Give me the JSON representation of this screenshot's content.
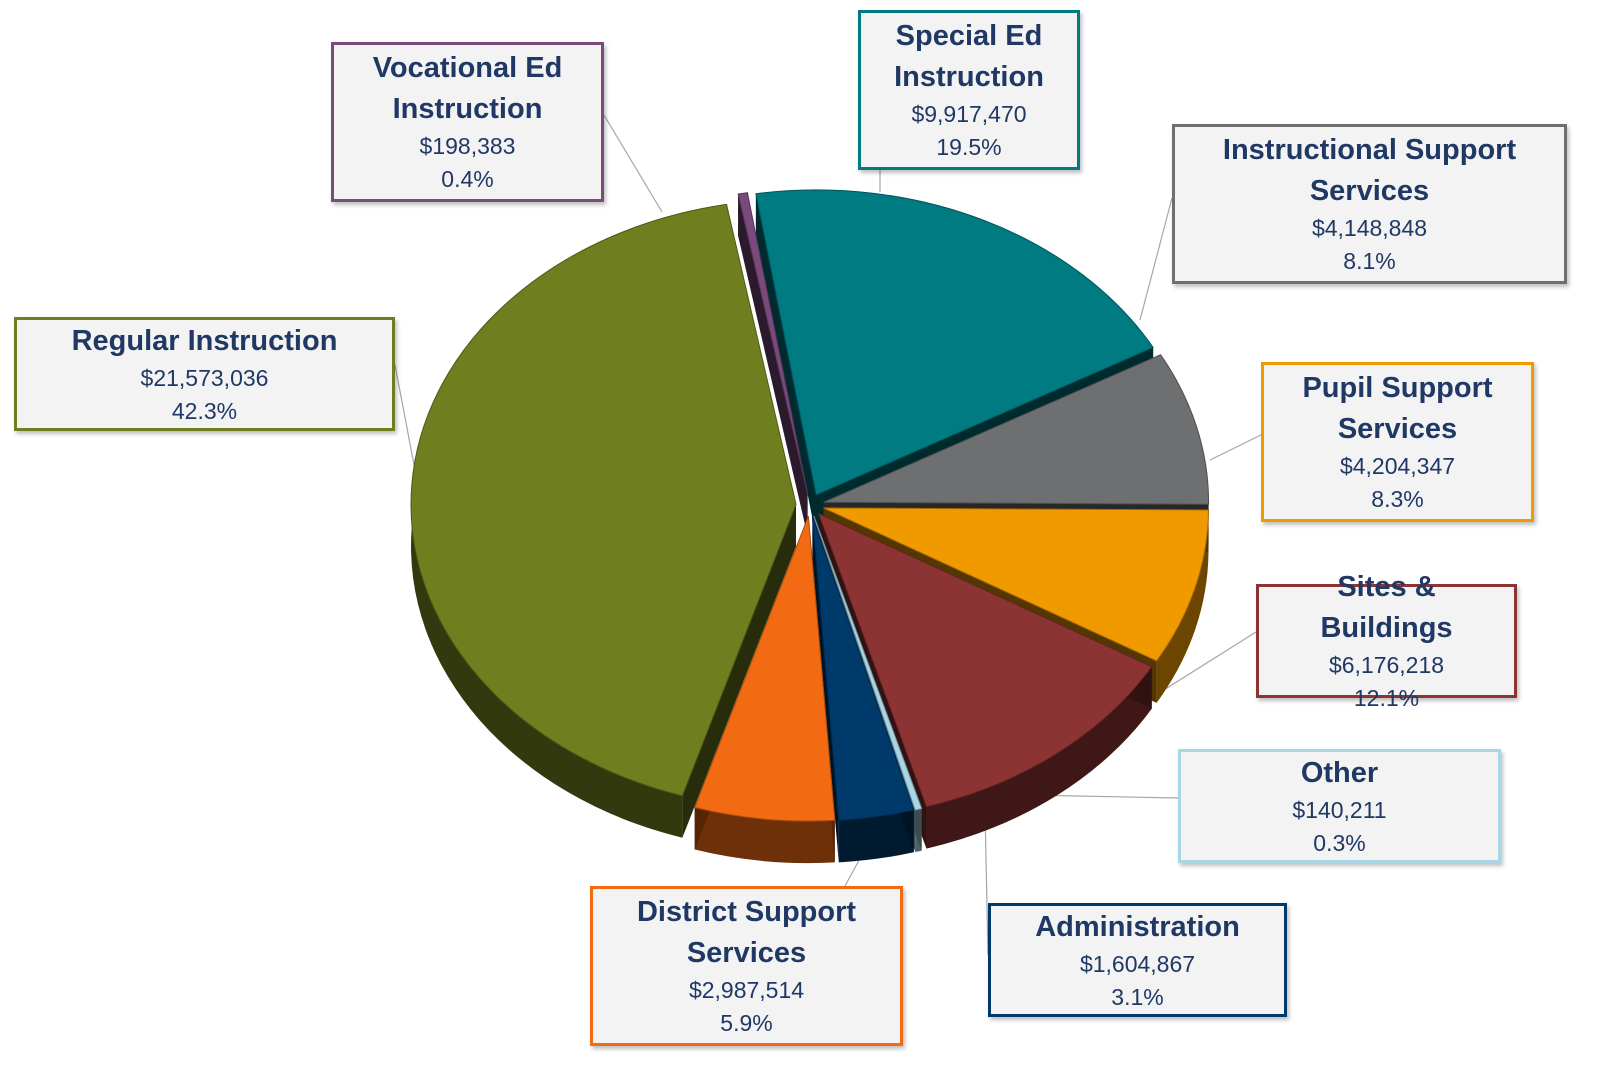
{
  "chart_data": {
    "type": "pie",
    "categories": [
      "Special Ed Instruction",
      "Instructional Support Services",
      "Pupil Support Services",
      "Sites & Buildings",
      "Other",
      "Administration",
      "District Support Services",
      "Regular Instruction",
      "Vocational Ed Instruction"
    ],
    "values": [
      9917470,
      4148848,
      4204347,
      6176218,
      140211,
      1604867,
      2987514,
      21573036,
      198383
    ],
    "value_labels": [
      "$9,917,470",
      "$4,148,848",
      "$4,204,347",
      "$6,176,218",
      "$140,211",
      "$1,604,867",
      "$2,987,514",
      "$21,573,036",
      "$198,383"
    ],
    "percentages": [
      19.5,
      8.1,
      8.3,
      12.1,
      0.3,
      3.1,
      5.9,
      42.3,
      0.4
    ],
    "percentage_labels": [
      "19.5%",
      "8.1%",
      "8.3%",
      "12.1%",
      "0.3%",
      "3.1%",
      "5.9%",
      "42.3%",
      "0.4%"
    ],
    "colors": [
      "#007b82",
      "#6e6f71",
      "#f09a00",
      "#8c3333",
      "#a9d6e5",
      "#003a6b",
      "#f26b12",
      "#6f7e1e",
      "#7a4a7c"
    ]
  }
}
